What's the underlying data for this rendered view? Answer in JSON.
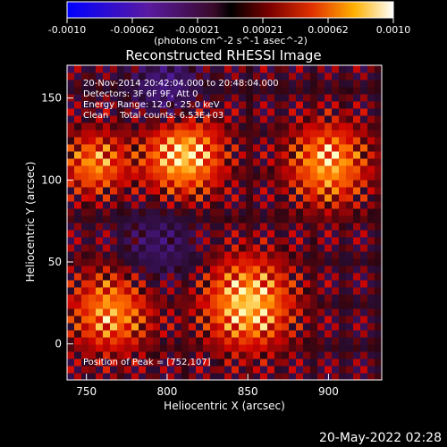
{
  "chart_data": {
    "type": "heatmap",
    "title": "Reconstructed RHESSI Image",
    "xlabel": "Heliocentric X (arcsec)",
    "ylabel": "Heliocentric Y (arcsec)",
    "xlim": [
      738,
      933
    ],
    "ylim": [
      -22,
      170
    ],
    "xticks": [
      750,
      800,
      850,
      900
    ],
    "yticks": [
      0,
      50,
      100,
      150
    ],
    "colorbar": {
      "label": "(photons cm^-2 s^-1 asec^-2)",
      "range": [
        -0.001,
        0.001
      ],
      "ticks": [
        "-0.0010",
        "-0.00062",
        "-0.00021",
        "0.00021",
        "0.00062",
        "0.0010"
      ]
    },
    "annotations": [
      "20-Nov-2014 20:42:04.000 to 20:48:04.000",
      "Detectors: 3F 6F 9F, Att 0",
      "Energy Range: 12.0 - 25.0 keV",
      "Clean    Total counts: 6.53E+03"
    ],
    "peak_label": "Position of Peak = [752,107]",
    "sources": [
      {
        "x": 810,
        "y": 115,
        "sigma": 18,
        "amp": 0.0009
      },
      {
        "x": 755,
        "y": 110,
        "sigma": 14,
        "amp": 0.0007
      },
      {
        "x": 900,
        "y": 110,
        "sigma": 18,
        "amp": 0.0008
      },
      {
        "x": 850,
        "y": 25,
        "sigma": 20,
        "amp": 0.0009
      },
      {
        "x": 765,
        "y": 20,
        "sigma": 18,
        "amp": 0.00075
      },
      {
        "x": 800,
        "y": 155,
        "sigma": 14,
        "amp": -0.0006
      },
      {
        "x": 795,
        "y": 60,
        "sigma": 16,
        "amp": -0.0004
      }
    ]
  },
  "footer": {
    "date": "20-May-2022 02:28"
  }
}
